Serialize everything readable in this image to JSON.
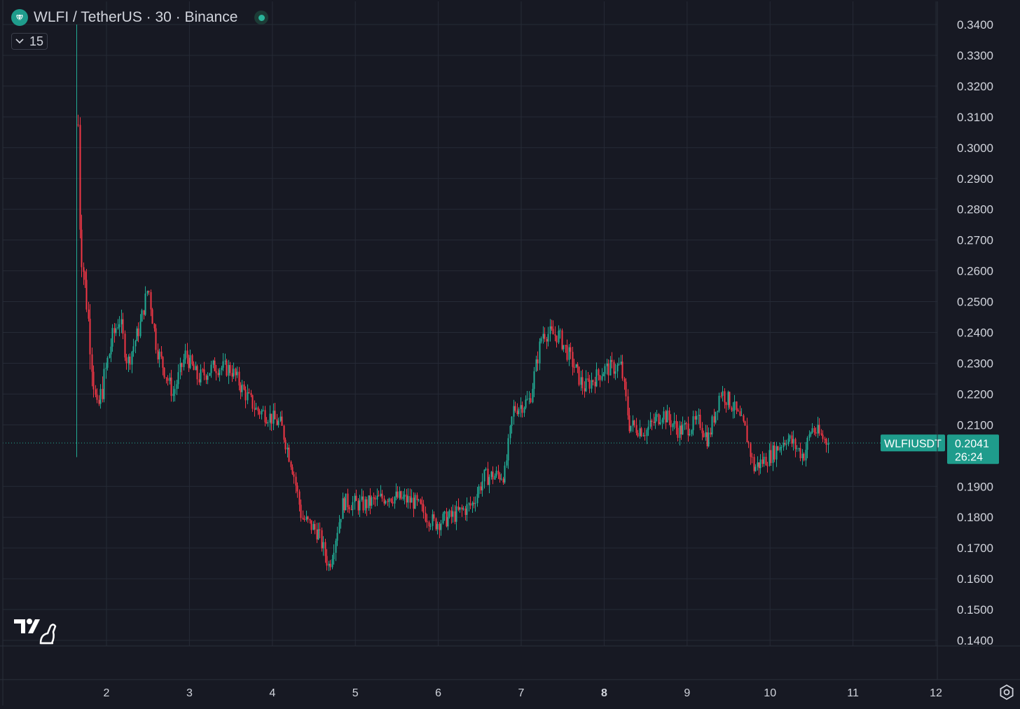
{
  "header": {
    "symbol_title": "WLFI / TetherUS · 30 · Binance",
    "indicator_count": "15"
  },
  "price_label": {
    "ticker": "WLFIUSDT",
    "price": "0.2041",
    "countdown": "26:24"
  },
  "colors": {
    "background": "#171923",
    "grid": "#262a36",
    "up": "#22ab94",
    "down": "#f23645",
    "accent": "#1f9c8c",
    "axis_text": "#d1d4dc"
  },
  "chart_data": {
    "type": "candlestick",
    "title": "WLFI / TetherUS · 30 · Binance",
    "y_axis": {
      "ticks": [
        "0.3400",
        "0.3300",
        "0.3200",
        "0.3100",
        "0.3000",
        "0.2900",
        "0.2800",
        "0.2700",
        "0.2600",
        "0.2500",
        "0.2400",
        "0.2300",
        "0.2200",
        "0.2100",
        "0.1900",
        "0.1800",
        "0.1700",
        "0.1600",
        "0.1500",
        "0.1400"
      ],
      "range": [
        0.14,
        0.34
      ]
    },
    "x_axis": {
      "ticks": [
        "2",
        "3",
        "4",
        "5",
        "6",
        "7",
        "8",
        "9",
        "10",
        "11",
        "12"
      ],
      "bold_tick": "8",
      "range_days": [
        1.14,
        12.15
      ]
    },
    "last_price": 0.2041,
    "grid": true,
    "price_path_anchors": [
      {
        "day": 1.64,
        "price": 0.33
      },
      {
        "day": 1.68,
        "price": 0.27
      },
      {
        "day": 1.76,
        "price": 0.25
      },
      {
        "day": 1.88,
        "price": 0.213
      },
      {
        "day": 2.05,
        "price": 0.236
      },
      {
        "day": 2.15,
        "price": 0.245
      },
      {
        "day": 2.25,
        "price": 0.23
      },
      {
        "day": 2.4,
        "price": 0.242
      },
      {
        "day": 2.5,
        "price": 0.255
      },
      {
        "day": 2.6,
        "price": 0.235
      },
      {
        "day": 2.8,
        "price": 0.22
      },
      {
        "day": 2.95,
        "price": 0.233
      },
      {
        "day": 3.1,
        "price": 0.225
      },
      {
        "day": 3.3,
        "price": 0.229
      },
      {
        "day": 3.5,
        "price": 0.228
      },
      {
        "day": 3.65,
        "price": 0.221
      },
      {
        "day": 3.8,
        "price": 0.215
      },
      {
        "day": 3.95,
        "price": 0.213
      },
      {
        "day": 4.1,
        "price": 0.21
      },
      {
        "day": 4.25,
        "price": 0.195
      },
      {
        "day": 4.35,
        "price": 0.18
      },
      {
        "day": 4.55,
        "price": 0.175
      },
      {
        "day": 4.68,
        "price": 0.164
      },
      {
        "day": 4.85,
        "price": 0.185
      },
      {
        "day": 5.1,
        "price": 0.184
      },
      {
        "day": 5.4,
        "price": 0.187
      },
      {
        "day": 5.7,
        "price": 0.185
      },
      {
        "day": 5.95,
        "price": 0.178
      },
      {
        "day": 6.15,
        "price": 0.18
      },
      {
        "day": 6.4,
        "price": 0.184
      },
      {
        "day": 6.55,
        "price": 0.193
      },
      {
        "day": 6.8,
        "price": 0.194
      },
      {
        "day": 6.9,
        "price": 0.215
      },
      {
        "day": 7.1,
        "price": 0.218
      },
      {
        "day": 7.25,
        "price": 0.24
      },
      {
        "day": 7.45,
        "price": 0.239
      },
      {
        "day": 7.6,
        "price": 0.231
      },
      {
        "day": 7.75,
        "price": 0.222
      },
      {
        "day": 8.0,
        "price": 0.228
      },
      {
        "day": 8.2,
        "price": 0.229
      },
      {
        "day": 8.3,
        "price": 0.21
      },
      {
        "day": 8.5,
        "price": 0.208
      },
      {
        "day": 8.7,
        "price": 0.214
      },
      {
        "day": 8.9,
        "price": 0.208
      },
      {
        "day": 9.15,
        "price": 0.211
      },
      {
        "day": 9.25,
        "price": 0.205
      },
      {
        "day": 9.4,
        "price": 0.221
      },
      {
        "day": 9.55,
        "price": 0.216
      },
      {
        "day": 9.7,
        "price": 0.208
      },
      {
        "day": 9.8,
        "price": 0.196
      },
      {
        "day": 10.0,
        "price": 0.2
      },
      {
        "day": 10.2,
        "price": 0.206
      },
      {
        "day": 10.4,
        "price": 0.2
      },
      {
        "day": 10.5,
        "price": 0.209
      },
      {
        "day": 10.7,
        "price": 0.2041
      }
    ]
  }
}
